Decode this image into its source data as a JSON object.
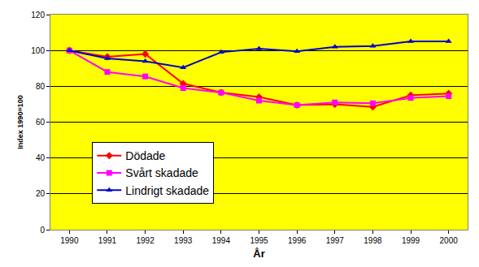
{
  "chart_data": {
    "type": "line",
    "x_label": "År",
    "y_label": "Index 1990=100",
    "categories": [
      "1990",
      "1991",
      "1992",
      "1993",
      "1994",
      "1995",
      "1996",
      "1997",
      "1998",
      "1999",
      "2000"
    ],
    "series": [
      {
        "name": "Dödade",
        "color": "#ff0000",
        "marker": "diamond",
        "values": [
          100,
          96.5,
          98,
          81.5,
          76.5,
          74,
          69.5,
          70,
          68.5,
          75,
          76
        ]
      },
      {
        "name": "Svårt skadade",
        "color": "#ff00ff",
        "marker": "square",
        "values": [
          100,
          88,
          85.5,
          79,
          76.5,
          72,
          69.5,
          71,
          70.5,
          73.5,
          74.5
        ]
      },
      {
        "name": "Lindrigt skadade",
        "color": "#0000cc",
        "marker": "triangle-up",
        "values": [
          100,
          95.5,
          94,
          90.5,
          99,
          101,
          99.5,
          102,
          102.5,
          105,
          105
        ]
      }
    ],
    "ylim": [
      0,
      120
    ],
    "yticks": [
      0,
      20,
      40,
      60,
      80,
      100,
      120
    ],
    "grid": true,
    "legend": "lower left"
  }
}
